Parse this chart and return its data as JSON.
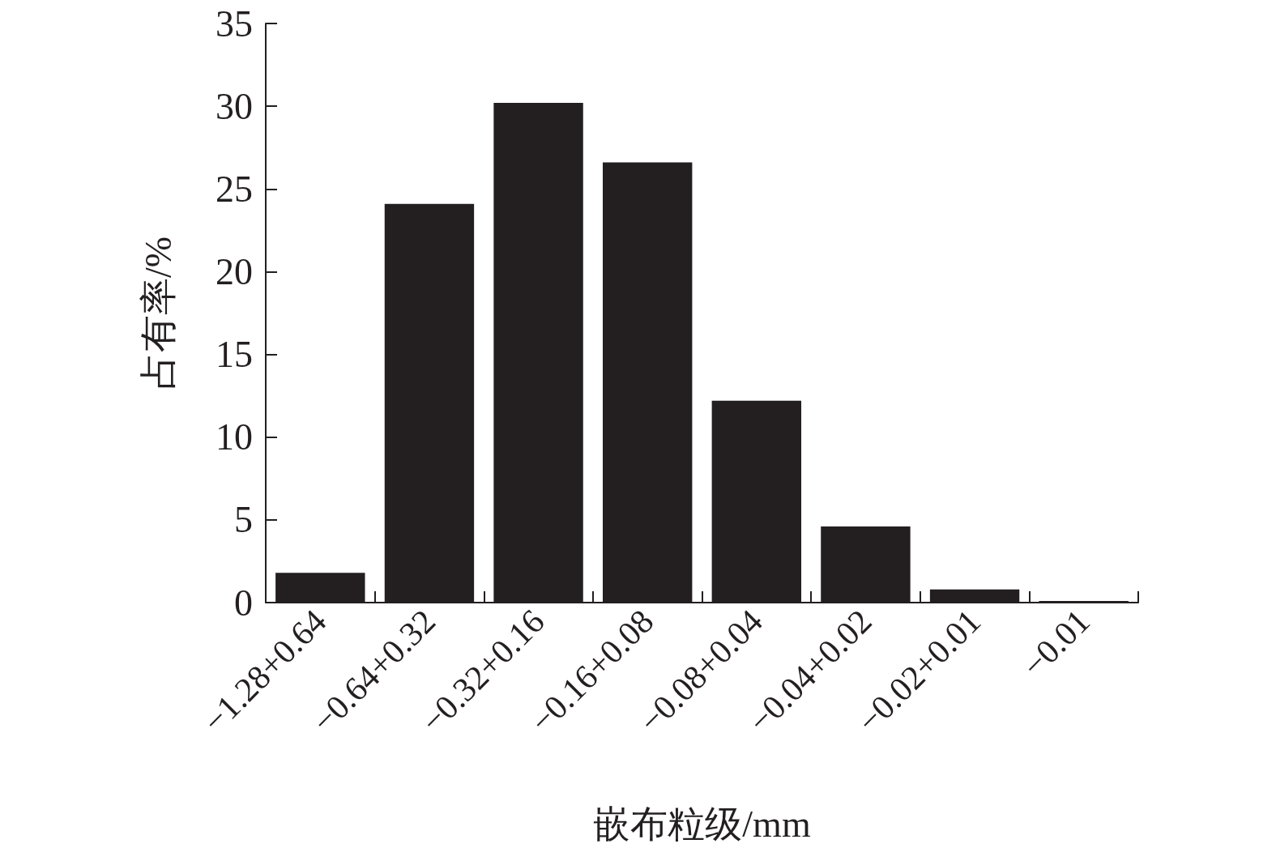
{
  "chart_data": {
    "type": "bar",
    "xlabel": "嵌布粒级/mm",
    "ylabel": "占有率/%",
    "categories": [
      "−1.28+0.64",
      "−0.64+0.32",
      "−0.32+0.16",
      "−0.16+0.08",
      "−0.08+0.04",
      "−0.04+0.02",
      "−0.02+0.01",
      "−0.01"
    ],
    "values": [
      1.8,
      24.1,
      30.2,
      26.6,
      12.2,
      4.6,
      0.8,
      0.1
    ],
    "color": "#231f20",
    "ylim": [
      0,
      35
    ],
    "yticks": [
      0,
      5,
      10,
      15,
      20,
      25,
      30,
      35
    ],
    "grid": false
  }
}
